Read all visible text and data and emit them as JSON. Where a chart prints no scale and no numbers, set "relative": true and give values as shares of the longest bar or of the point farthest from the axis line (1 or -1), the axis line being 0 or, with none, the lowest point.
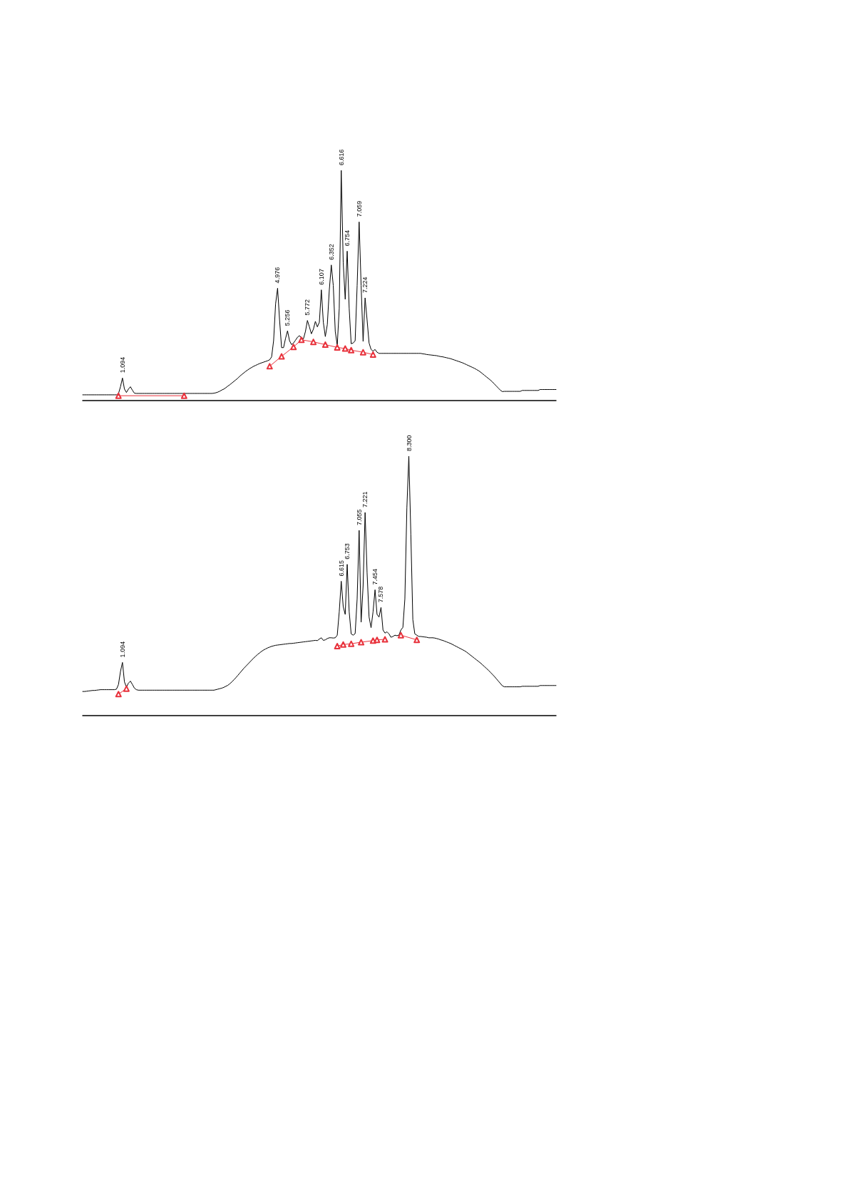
{
  "chart_data": [
    {
      "type": "line",
      "relative": true,
      "annotations": [
        {
          "text": "1.094",
          "y": 0.098
        },
        {
          "text": "4.976",
          "y": 0.488
        },
        {
          "text": "5.256",
          "y": 0.303
        },
        {
          "text": "5.772",
          "y": 0.348
        },
        {
          "text": "6.107",
          "y": 0.481
        },
        {
          "text": "6.352",
          "y": 0.589
        },
        {
          "text": "6.616",
          "y": 1
        },
        {
          "text": "6.754",
          "y": 0.649
        },
        {
          "text": "7.059",
          "y": 0.776
        },
        {
          "text": "7.224",
          "y": 0.446
        }
      ],
      "categories": [
        null,
        null,
        null,
        null,
        null,
        null,
        null,
        null,
        null,
        null,
        null,
        null,
        null,
        null,
        null,
        null,
        null,
        null,
        null,
        null,
        null,
        null,
        null,
        null,
        null,
        null,
        null,
        null,
        null,
        null,
        null,
        null,
        null,
        null,
        null,
        null,
        null,
        null,
        null,
        null,
        null,
        null,
        null,
        null,
        null,
        null,
        null,
        null,
        null,
        null,
        null,
        null,
        null,
        null,
        null,
        null,
        null,
        null,
        null,
        null,
        null,
        null,
        null,
        null,
        null,
        null,
        null,
        null,
        null,
        null,
        null,
        null,
        null,
        null,
        null,
        null,
        null,
        null,
        null,
        null,
        null,
        null,
        null,
        null,
        null,
        null,
        null,
        null,
        null,
        null,
        null,
        null,
        null,
        null,
        null,
        null,
        null,
        null,
        null,
        null,
        null,
        null,
        null,
        null,
        null,
        null,
        null,
        null,
        null,
        null,
        null,
        null,
        null,
        null,
        null,
        null,
        null,
        null,
        null,
        null,
        null,
        null,
        null,
        null,
        null,
        null,
        null,
        null,
        null,
        null,
        null,
        null,
        null,
        null,
        null,
        null,
        null,
        null,
        null,
        null,
        null,
        null,
        null,
        null,
        null,
        null,
        null,
        null,
        null,
        null,
        null,
        null,
        null,
        null,
        null,
        null,
        null,
        null,
        null,
        null,
        null,
        null,
        null,
        null,
        null,
        null,
        null,
        null,
        null,
        null,
        null,
        null,
        null,
        null,
        null,
        null,
        null,
        null,
        null,
        null,
        null,
        null,
        null,
        null,
        null,
        null,
        null,
        null,
        null,
        null,
        null,
        null,
        null,
        null,
        null,
        null,
        null,
        null,
        null,
        null,
        null,
        null,
        null,
        null,
        null,
        null,
        null,
        null,
        null,
        null,
        null,
        null,
        null,
        null,
        null,
        null,
        null,
        null,
        null,
        null,
        null,
        null,
        null,
        null,
        null,
        null,
        null,
        null,
        null,
        null,
        null,
        null,
        null,
        null,
        null,
        null,
        null,
        null,
        null
      ],
      "series": [
        {
          "color": "#000000",
          "marker": "none",
          "values": [
            0.025,
            0.025,
            0.025,
            0.025,
            0.025,
            0.025,
            0.025,
            0.025,
            0.025,
            0.025,
            0.025,
            0.025,
            0.025,
            0.025,
            0.025,
            0.025,
            0.025,
            0.025,
            0.03,
            0.06,
            0.098,
            0.05,
            0.035,
            0.05,
            0.06,
            0.045,
            0.032,
            0.031,
            0.031,
            0.031,
            0.031,
            0.031,
            0.031,
            0.031,
            0.031,
            0.031,
            0.031,
            0.031,
            0.031,
            0.031,
            0.031,
            0.031,
            0.031,
            0.031,
            0.031,
            0.031,
            0.031,
            0.031,
            0.031,
            0.031,
            0.031,
            0.031,
            0.031,
            0.031,
            0.031,
            0.031,
            0.031,
            0.031,
            0.031,
            0.031,
            0.031,
            0.031,
            0.031,
            0.031,
            0.031,
            0.031,
            0.032,
            0.034,
            0.037,
            0.041,
            0.046,
            0.05,
            0.056,
            0.063,
            0.069,
            0.076,
            0.083,
            0.09,
            0.097,
            0.106,
            0.113,
            0.12,
            0.127,
            0.133,
            0.139,
            0.144,
            0.149,
            0.153,
            0.157,
            0.161,
            0.164,
            0.167,
            0.17,
            0.173,
            0.177,
            0.19,
            0.26,
            0.42,
            0.488,
            0.35,
            0.23,
            0.23,
            0.27,
            0.303,
            0.26,
            0.243,
            0.25,
            0.262,
            0.275,
            0.282,
            0.272,
            0.268,
            0.3,
            0.348,
            0.32,
            0.29,
            0.31,
            0.344,
            0.32,
            0.34,
            0.481,
            0.34,
            0.278,
            0.33,
            0.48,
            0.589,
            0.5,
            0.3,
            0.24,
            0.4,
            1,
            0.6,
            0.44,
            0.649,
            0.4,
            0.247,
            0.25,
            0.26,
            0.5,
            0.776,
            0.5,
            0.257,
            0.446,
            0.35,
            0.25,
            0.222,
            0.215,
            0.222,
            0.21,
            0.205,
            0.205,
            0.205,
            0.205,
            0.205,
            0.205,
            0.205,
            0.205,
            0.205,
            0.205,
            0.205,
            0.205,
            0.205,
            0.205,
            0.205,
            0.205,
            0.205,
            0.205,
            0.205,
            0.205,
            0.205,
            0.205,
            0.203,
            0.202,
            0.2,
            0.199,
            0.198,
            0.197,
            0.196,
            0.195,
            0.193,
            0.191,
            0.19,
            0.188,
            0.186,
            0.184,
            0.182,
            0.179,
            0.176,
            0.173,
            0.17,
            0.167,
            0.164,
            0.16,
            0.156,
            0.152,
            0.148,
            0.144,
            0.14,
            0.135,
            0.13,
            0.124,
            0.117,
            0.11,
            0.103,
            0.096,
            0.089,
            0.081,
            0.072,
            0.063,
            0.054,
            0.045,
            0.039,
            0.04,
            0.04,
            0.04,
            0.04,
            0.04,
            0.04,
            0.04,
            0.04,
            0.04,
            0.044,
            0.044,
            0.044,
            0.044,
            0.044,
            0.044,
            0.044,
            0.044,
            0.044,
            0.048,
            0.048,
            0.048,
            0.048,
            0.048,
            0.048,
            0.048,
            0.048,
            0.048
          ]
        },
        {
          "color": "#e8323c",
          "marker": "triangle",
          "values": [
            null,
            null,
            null,
            null,
            null,
            null,
            null,
            null,
            null,
            null,
            null,
            null,
            null,
            null,
            null,
            null,
            null,
            null,
            0.021,
            null,
            null,
            null,
            null,
            null,
            null,
            null,
            null,
            null,
            null,
            null,
            null,
            null,
            null,
            null,
            null,
            null,
            null,
            null,
            null,
            null,
            null,
            null,
            null,
            null,
            null,
            null,
            null,
            null,
            null,
            null,
            null,
            0.021,
            null,
            null,
            null,
            null,
            null,
            null,
            null,
            null,
            null,
            null,
            null,
            null,
            null,
            null,
            null,
            null,
            null,
            null,
            null,
            null,
            null,
            null,
            null,
            null,
            null,
            null,
            null,
            null,
            null,
            null,
            null,
            null,
            null,
            null,
            null,
            null,
            null,
            null,
            null,
            null,
            null,
            null,
            null,
            null,
            null,
            null,
            null,
            null,
            null,
            null,
            null,
            null,
            null,
            null,
            null,
            null,
            null,
            null,
            null,
            null,
            null,
            null,
            null,
            null,
            null,
            null,
            null,
            null,
            null,
            null,
            null,
            null,
            null,
            null,
            null,
            null,
            null,
            null,
            null,
            null,
            null,
            null,
            null,
            null,
            null,
            null,
            null,
            null,
            null,
            null,
            null,
            null,
            null,
            null,
            null,
            null,
            null,
            null,
            null,
            null,
            null,
            null,
            null,
            null,
            null,
            null,
            null,
            null,
            null,
            null,
            null,
            null,
            null,
            null,
            null,
            null,
            null,
            null,
            null,
            null,
            null,
            null,
            null,
            null,
            null,
            null,
            null,
            null,
            null,
            null,
            null,
            null,
            null,
            null,
            null,
            null,
            null,
            null,
            null,
            null,
            null,
            null,
            null,
            null,
            null,
            null,
            null,
            null,
            null,
            null,
            null,
            null,
            null,
            null,
            null,
            null,
            null,
            null,
            null,
            null,
            null,
            null,
            null,
            null,
            null,
            null,
            null,
            null,
            null,
            null,
            null,
            null,
            null,
            null,
            null,
            null,
            null,
            null,
            null,
            null,
            null,
            null,
            null,
            null,
            null,
            null,
            null
          ]
        },
        {
          "color": "#e8323c",
          "marker": "triangle",
          "values": [
            null,
            null,
            null,
            null,
            null,
            null,
            null,
            null,
            null,
            null,
            null,
            null,
            null,
            null,
            null,
            null,
            null,
            null,
            null,
            null,
            null,
            null,
            null,
            null,
            null,
            null,
            null,
            null,
            null,
            null,
            null,
            null,
            null,
            null,
            null,
            null,
            null,
            null,
            null,
            null,
            null,
            null,
            null,
            null,
            null,
            null,
            null,
            null,
            null,
            null,
            null,
            null,
            null,
            null,
            null,
            null,
            null,
            null,
            null,
            null,
            null,
            null,
            null,
            null,
            null,
            null,
            null,
            null,
            null,
            null,
            null,
            null,
            null,
            null,
            null,
            null,
            null,
            null,
            null,
            null,
            null,
            null,
            null,
            null,
            null,
            null,
            null,
            null,
            null,
            null,
            null,
            null,
            null,
            null,
            0.149,
            null,
            null,
            null,
            null,
            null,
            0.192,
            null,
            null,
            null,
            null,
            null,
            0.233,
            null,
            null,
            null,
            0.264,
            null,
            null,
            null,
            null,
            null,
            0.255,
            null,
            null,
            null,
            null,
            null,
            0.243,
            null,
            null,
            null,
            null,
            null,
            0.231,
            null,
            null,
            null,
            0.226,
            null,
            null,
            0.219,
            null,
            null,
            null,
            null,
            null,
            0.21,
            null,
            null,
            null,
            null,
            0.2,
            null,
            null,
            null,
            null,
            null,
            null,
            null,
            null,
            null,
            null,
            null,
            null,
            null,
            null,
            null,
            null,
            null,
            null,
            null,
            null,
            null,
            null,
            null,
            null,
            null,
            null,
            null,
            null,
            null,
            null,
            null,
            null,
            null,
            null,
            null,
            null,
            null,
            null,
            null,
            null,
            null,
            null,
            null,
            null,
            null,
            null,
            null,
            null,
            null,
            null,
            null,
            null,
            null,
            null,
            null,
            null,
            null,
            null,
            null,
            null,
            null,
            null,
            null,
            null,
            null,
            null,
            null,
            null,
            null,
            null,
            null,
            null,
            null,
            null,
            null,
            null,
            null,
            null,
            null,
            null,
            null,
            null,
            null,
            null,
            null,
            null,
            null,
            null,
            null,
            null,
            null,
            null
          ]
        }
      ]
    },
    {
      "type": "line",
      "relative": true,
      "annotations": [
        {
          "text": "1.094",
          "y": 0.205
        },
        {
          "text": "6.615",
          "y": 0.518
        },
        {
          "text": "6.753",
          "y": 0.583
        },
        {
          "text": "7.055",
          "y": 0.714
        },
        {
          "text": "7.221",
          "y": 0.783
        },
        {
          "text": "7.454",
          "y": 0.485
        },
        {
          "text": "7.578",
          "y": 0.417
        },
        {
          "text": "8.300",
          "y": 1
        }
      ],
      "categories": [
        null,
        null,
        null,
        null,
        null,
        null,
        null,
        null,
        null,
        null,
        null,
        null,
        null,
        null,
        null,
        null,
        null,
        null,
        null,
        null,
        null,
        null,
        null,
        null,
        null,
        null,
        null,
        null,
        null,
        null,
        null,
        null,
        null,
        null,
        null,
        null,
        null,
        null,
        null,
        null,
        null,
        null,
        null,
        null,
        null,
        null,
        null,
        null,
        null,
        null,
        null,
        null,
        null,
        null,
        null,
        null,
        null,
        null,
        null,
        null,
        null,
        null,
        null,
        null,
        null,
        null,
        null,
        null,
        null,
        null,
        null,
        null,
        null,
        null,
        null,
        null,
        null,
        null,
        null,
        null,
        null,
        null,
        null,
        null,
        null,
        null,
        null,
        null,
        null,
        null,
        null,
        null,
        null,
        null,
        null,
        null,
        null,
        null,
        null,
        null,
        null,
        null,
        null,
        null,
        null,
        null,
        null,
        null,
        null,
        null,
        null,
        null,
        null,
        null,
        null,
        null,
        null,
        null,
        null,
        null,
        null,
        null,
        null,
        null,
        null,
        null,
        null,
        null,
        null,
        null,
        null,
        null,
        null,
        null,
        null,
        null,
        null,
        null,
        null,
        null,
        null,
        null,
        null,
        null,
        null,
        null,
        null,
        null,
        null,
        null,
        null,
        null,
        null,
        null,
        null,
        null,
        null,
        null,
        null,
        null,
        null,
        null,
        null,
        null,
        null,
        null,
        null,
        null,
        null,
        null,
        null,
        null,
        null,
        null,
        null,
        null,
        null,
        null,
        null,
        null,
        null,
        null,
        null,
        null,
        null,
        null,
        null,
        null,
        null,
        null,
        null,
        null,
        null,
        null,
        null,
        null,
        null,
        null,
        null,
        null,
        null,
        null,
        null,
        null,
        null,
        null,
        null,
        null,
        null,
        null,
        null,
        null,
        null,
        null,
        null,
        null,
        null,
        null,
        null,
        null,
        null,
        null,
        null,
        null,
        null,
        null,
        null,
        null,
        null,
        null,
        null,
        null,
        null,
        null,
        null,
        null,
        null,
        null,
        null
      ],
      "series": [
        {
          "color": "#000000",
          "marker": "none",
          "values": [
            0.093,
            0.093,
            0.094,
            0.095,
            0.096,
            0.097,
            0.097,
            0.098,
            0.099,
            0.1,
            0.1,
            0.1,
            0.1,
            0.1,
            0.1,
            0.1,
            0.1,
            0.102,
            0.12,
            0.17,
            0.205,
            0.13,
            0.11,
            0.125,
            0.133,
            0.12,
            0.106,
            0.1,
            0.098,
            0.098,
            0.098,
            0.098,
            0.098,
            0.098,
            0.098,
            0.098,
            0.098,
            0.098,
            0.098,
            0.098,
            0.098,
            0.098,
            0.098,
            0.098,
            0.098,
            0.098,
            0.098,
            0.098,
            0.098,
            0.098,
            0.098,
            0.098,
            0.098,
            0.098,
            0.098,
            0.098,
            0.098,
            0.098,
            0.098,
            0.098,
            0.098,
            0.098,
            0.098,
            0.098,
            0.098,
            0.098,
            0.098,
            0.1,
            0.102,
            0.104,
            0.106,
            0.109,
            0.113,
            0.117,
            0.123,
            0.13,
            0.138,
            0.146,
            0.155,
            0.164,
            0.173,
            0.182,
            0.19,
            0.198,
            0.206,
            0.214,
            0.222,
            0.229,
            0.236,
            0.242,
            0.248,
            0.253,
            0.257,
            0.261,
            0.264,
            0.267,
            0.269,
            0.271,
            0.272,
            0.273,
            0.274,
            0.275,
            0.276,
            0.277,
            0.278,
            0.278,
            0.279,
            0.28,
            0.281,
            0.282,
            0.283,
            0.284,
            0.285,
            0.286,
            0.287,
            0.288,
            0.289,
            0.29,
            0.289,
            0.295,
            0.3,
            0.29,
            0.292,
            0.297,
            0.3,
            0.3,
            0.299,
            0.3,
            0.31,
            0.4,
            0.518,
            0.42,
            0.39,
            0.583,
            0.4,
            0.315,
            0.31,
            0.316,
            0.45,
            0.714,
            0.36,
            0.5,
            0.783,
            0.55,
            0.38,
            0.339,
            0.4,
            0.485,
            0.39,
            0.38,
            0.417,
            0.33,
            0.318,
            0.323,
            0.315,
            0.302,
            0.305,
            0.31,
            0.308,
            0.31,
            0.33,
            0.34,
            0.45,
            0.8,
            1,
            0.7,
            0.37,
            0.315,
            0.31,
            0.305,
            0.305,
            0.304,
            0.303,
            0.302,
            0.3,
            0.3,
            0.3,
            0.299,
            0.297,
            0.295,
            0.292,
            0.29,
            0.287,
            0.284,
            0.281,
            0.278,
            0.274,
            0.27,
            0.266,
            0.262,
            0.258,
            0.254,
            0.25,
            0.245,
            0.239,
            0.233,
            0.227,
            0.221,
            0.215,
            0.209,
            0.203,
            0.196,
            0.189,
            0.182,
            0.175,
            0.167,
            0.159,
            0.151,
            0.142,
            0.133,
            0.124,
            0.115,
            0.111,
            0.111,
            0.111,
            0.111,
            0.111,
            0.111,
            0.111,
            0.111,
            0.111,
            0.113,
            0.113,
            0.113,
            0.113,
            0.113,
            0.113,
            0.113,
            0.113,
            0.113,
            0.116,
            0.116,
            0.116,
            0.116,
            0.116,
            0.116,
            0.116,
            0.116,
            0.116
          ]
        },
        {
          "color": "#e8323c",
          "marker": "triangle",
          "values": [
            null,
            null,
            null,
            null,
            null,
            null,
            null,
            null,
            null,
            null,
            null,
            null,
            null,
            null,
            null,
            null,
            null,
            null,
            0.083,
            null,
            null,
            null,
            0.104,
            null,
            null,
            null,
            null,
            null,
            null,
            null,
            null,
            null,
            null,
            null,
            null,
            null,
            null,
            null,
            null,
            null,
            null,
            null,
            null,
            null,
            null,
            null,
            null,
            null,
            null,
            null,
            null,
            null,
            null,
            null,
            null,
            null,
            null,
            null,
            null,
            null,
            null,
            null,
            null,
            null,
            null,
            null,
            null,
            null,
            null,
            null,
            null,
            null,
            null,
            null,
            null,
            null,
            null,
            null,
            null,
            null,
            null,
            null,
            null,
            null,
            null,
            null,
            null,
            null,
            null,
            null,
            null,
            null,
            null,
            null,
            null,
            null,
            null,
            null,
            null,
            null,
            null,
            null,
            null,
            null,
            null,
            null,
            null,
            null,
            null,
            null,
            null,
            null,
            null,
            null,
            null,
            null,
            null,
            null,
            null,
            null,
            null,
            null,
            null,
            null,
            null,
            null,
            null,
            null,
            null,
            null,
            null,
            null,
            null,
            null,
            null,
            null,
            null,
            null,
            null,
            null,
            null,
            null,
            null,
            null,
            null,
            null,
            null,
            null,
            null,
            null,
            null,
            null,
            null,
            null,
            null,
            null,
            null,
            null,
            null,
            null,
            null,
            null,
            null,
            null,
            null,
            null,
            null,
            null,
            null,
            null,
            null,
            null,
            null,
            null,
            null,
            null,
            null,
            null,
            null,
            null,
            null,
            null,
            null,
            null,
            null,
            null,
            null,
            null,
            null,
            null,
            null,
            null,
            null,
            null,
            null,
            null,
            null,
            null,
            null,
            null,
            null,
            null,
            null,
            null,
            null,
            null,
            null,
            null,
            null,
            null,
            null,
            null,
            null,
            null,
            null,
            null,
            null,
            null,
            null,
            null,
            null,
            null,
            null,
            null,
            null,
            null,
            null,
            null,
            null,
            null,
            null,
            null,
            null,
            null,
            null,
            null,
            null,
            null,
            null
          ]
        },
        {
          "color": "#e8323c",
          "marker": "triangle",
          "values": [
            null,
            null,
            null,
            null,
            null,
            null,
            null,
            null,
            null,
            null,
            null,
            null,
            null,
            null,
            null,
            null,
            null,
            null,
            null,
            null,
            null,
            null,
            null,
            null,
            null,
            null,
            null,
            null,
            null,
            null,
            null,
            null,
            null,
            null,
            null,
            null,
            null,
            null,
            null,
            null,
            null,
            null,
            null,
            null,
            null,
            null,
            null,
            null,
            null,
            null,
            null,
            null,
            null,
            null,
            null,
            null,
            null,
            null,
            null,
            null,
            null,
            null,
            null,
            null,
            null,
            null,
            null,
            null,
            null,
            null,
            null,
            null,
            null,
            null,
            null,
            null,
            null,
            null,
            null,
            null,
            null,
            null,
            null,
            null,
            null,
            null,
            null,
            null,
            null,
            null,
            null,
            null,
            null,
            null,
            null,
            null,
            null,
            null,
            null,
            null,
            null,
            null,
            null,
            null,
            null,
            null,
            null,
            null,
            null,
            null,
            null,
            null,
            null,
            null,
            null,
            null,
            null,
            null,
            null,
            null,
            null,
            null,
            null,
            null,
            null,
            null,
            null,
            null,
            0.268,
            null,
            null,
            0.274,
            null,
            null,
            null,
            0.277,
            null,
            null,
            null,
            null,
            0.283,
            null,
            null,
            null,
            null,
            null,
            0.289,
            null,
            0.292,
            null,
            null,
            null,
            0.294,
            null,
            null,
            null,
            null,
            null,
            null,
            null,
            null,
            null,
            null,
            null,
            null,
            null,
            null,
            null,
            null,
            null,
            null,
            null,
            null,
            null,
            null,
            null,
            null,
            null,
            null,
            null,
            null,
            null,
            null,
            null,
            null,
            null,
            null,
            null,
            null,
            null,
            null,
            null,
            null,
            null,
            null,
            null,
            null,
            null,
            null,
            null,
            null,
            null,
            null,
            null,
            null,
            null,
            null,
            null,
            null,
            null,
            null,
            null,
            null,
            null,
            null,
            null,
            null,
            null,
            null,
            null,
            null,
            null,
            null,
            null,
            null,
            null,
            null,
            null,
            null,
            null,
            null,
            null,
            null,
            null,
            null,
            null,
            null,
            null,
            null
          ]
        },
        {
          "color": "#e8323c",
          "marker": "triangle",
          "values": [
            null,
            null,
            null,
            null,
            null,
            null,
            null,
            null,
            null,
            null,
            null,
            null,
            null,
            null,
            null,
            null,
            null,
            null,
            null,
            null,
            null,
            null,
            null,
            null,
            null,
            null,
            null,
            null,
            null,
            null,
            null,
            null,
            null,
            null,
            null,
            null,
            null,
            null,
            null,
            null,
            null,
            null,
            null,
            null,
            null,
            null,
            null,
            null,
            null,
            null,
            null,
            null,
            null,
            null,
            null,
            null,
            null,
            null,
            null,
            null,
            null,
            null,
            null,
            null,
            null,
            null,
            null,
            null,
            null,
            null,
            null,
            null,
            null,
            null,
            null,
            null,
            null,
            null,
            null,
            null,
            null,
            null,
            null,
            null,
            null,
            null,
            null,
            null,
            null,
            null,
            null,
            null,
            null,
            null,
            null,
            null,
            null,
            null,
            null,
            null,
            null,
            null,
            null,
            null,
            null,
            null,
            null,
            null,
            null,
            null,
            null,
            null,
            null,
            null,
            null,
            null,
            null,
            null,
            null,
            null,
            null,
            null,
            null,
            null,
            null,
            null,
            null,
            null,
            null,
            null,
            null,
            null,
            null,
            null,
            null,
            null,
            null,
            null,
            null,
            null,
            null,
            null,
            null,
            null,
            null,
            null,
            null,
            null,
            null,
            null,
            null,
            null,
            null,
            null,
            null,
            null,
            null,
            null,
            null,
            null,
            0.31,
            null,
            null,
            null,
            null,
            null,
            null,
            null,
            0.292,
            null,
            null,
            null,
            null,
            null,
            null,
            null,
            null,
            null,
            null,
            null,
            null,
            null,
            null,
            null,
            null,
            null,
            null,
            null,
            null,
            null,
            null,
            null,
            null,
            null,
            null,
            null,
            null,
            null,
            null,
            null,
            null,
            null,
            null,
            null,
            null,
            null,
            null,
            null,
            null,
            null,
            null,
            null,
            null,
            null,
            null,
            null,
            null,
            null,
            null,
            null,
            null,
            null,
            null,
            null,
            null,
            null,
            null,
            null,
            null,
            null,
            null,
            null,
            null,
            null,
            null,
            null,
            null,
            null,
            null
          ]
        }
      ]
    }
  ]
}
